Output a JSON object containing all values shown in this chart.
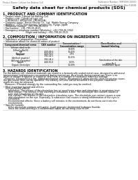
{
  "doc_header_left": "Product Name: Lithium Ion Battery Cell",
  "doc_header_right": "Substance Number: 99P0499-00010\nEstablished / Revision: Dec.7,2010",
  "title": "Safety data sheet for chemical products (SDS)",
  "section1_header": "1. PRODUCT AND COMPANY IDENTIFICATION",
  "section1_lines": [
    "• Product name: Lithium Ion Battery Cell",
    "• Product code: Cylindrical-type cell",
    "   (UR18650U, UR18650U, UR18650A)",
    "• Company name:  Benzo Electric Co., Ltd.  Mobile Energy Company",
    "• Address:  2201, Kamotanani, Sumoto-City, Hyogo, Japan",
    "• Telephone number:  +81-799-26-4111",
    "• Fax number:  +81-799-26-4121",
    "• Emergency telephone number (Weekday): +81-799-26-3562",
    "                                (Night and holiday): +81-799-26-3121"
  ],
  "section2_header": "2. COMPOSITION / INFORMATION ON INGREDIENTS",
  "section2_intro": "• Substance or preparation: Preparation",
  "section2_sub": "• Information about the chemical nature of product",
  "table_col_headers": [
    "Component/chemical name",
    "CAS number",
    "Concentration /\nConcentration range",
    "Classification and\nhazard labeling"
  ],
  "table_rows": [
    [
      "Lithium cobalt oxide\n(LiMnxCoyNizO2)",
      "-",
      "30-60%",
      "-"
    ],
    [
      "Iron",
      "7439-89-6",
      "10-25%",
      "-"
    ],
    [
      "Aluminum",
      "7429-90-5",
      "2-5%",
      "-"
    ],
    [
      "Graphite\n(Artificial graphite)\n(All kind of graphite)",
      "7782-42-5\n7782-44-2",
      "10-25%",
      "-"
    ],
    [
      "Copper",
      "7440-50-8",
      "5-15%",
      "Sensitization of the skin\ngroup No.2"
    ],
    [
      "Organic electrolyte",
      "-",
      "10-20%",
      "Inflammable liquid"
    ]
  ],
  "section3_header": "3. HAZARDS IDENTIFICATION",
  "section3_para1": [
    "For the battery cell, chemical materials are stored in a hermetically sealed metal case, designed to withstand",
    "temperatures and pressures encountered during normal use. As a result, during normal use, there is no",
    "physical danger of ignition or explosion and there is no danger of hazardous materials leakage.",
    "  However, if exposed to a fire, added mechanical shocks, decomposed, when electric-short-circuit may cause,",
    "the gas nozzle vent can be operated. The battery cell case will be breached if fire-polymer, hazardous",
    "materials may be released.",
    "  Moreover, if heated strongly by the surrounding fire, solid gas may be emitted."
  ],
  "section3_bullet1_header": "• Most important hazard and effects:",
  "section3_bullet1_lines": [
    "Human health effects:",
    "    Inhalation: The release of the electrolyte has an anesthesia action and stimulates in respiratory tract.",
    "    Skin contact: The release of the electrolyte stimulates a skin. The electrolyte skin contact causes a",
    "    sore and stimulation on the skin.",
    "    Eye contact: The release of the electrolyte stimulates eyes. The electrolyte eye contact causes a sore",
    "    and stimulation on the eye. Especially, a substance that causes a strong inflammation of the eyes is",
    "    contained.",
    "    Environmental effects: Since a battery cell remains in the environment, do not throw out it into the",
    "    environment."
  ],
  "section3_bullet2_header": "• Specific hazards:",
  "section3_bullet2_lines": [
    "    If the electrolyte contacts with water, it will generate detrimental hydrogen fluoride.",
    "    Since the used electrolyte is inflammable liquid, do not bring close to fire."
  ],
  "bg_color": "#ffffff",
  "text_color": "#000000",
  "gray_text": "#666666",
  "line_color": "#bbbbbb",
  "table_header_bg": "#e8e8e8",
  "fs_doc_hdr": 2.2,
  "fs_title": 4.5,
  "fs_sec_hdr": 3.5,
  "fs_body": 2.3,
  "fs_table_hdr": 2.2,
  "fs_table_body": 2.0
}
